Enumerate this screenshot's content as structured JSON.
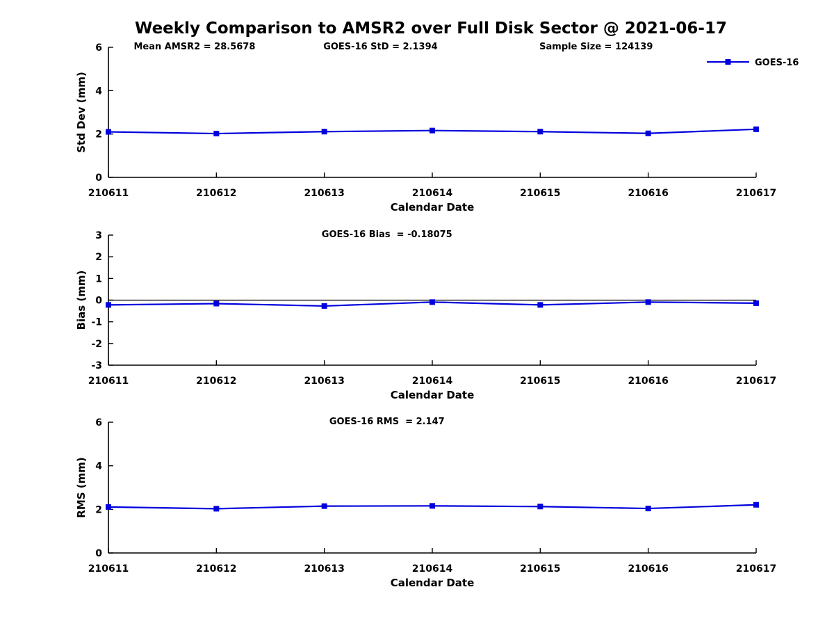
{
  "title": "Weekly Comparison to AMSR2 over Full Disk Sector @ 2021-06-17",
  "colors": {
    "line": "#0000dd",
    "axis": "#000000",
    "background": "#ffffff",
    "text": "#000000"
  },
  "legend": {
    "label": "GOES-16"
  },
  "x_axis": {
    "label": "Calendar Date",
    "categories": [
      "210611",
      "210612",
      "210613",
      "210614",
      "210615",
      "210616",
      "210617"
    ]
  },
  "chart_data": [
    {
      "type": "line",
      "name": "std-dev",
      "annotations": [
        "Mean AMSR2 = 28.5678",
        "GOES-16 StD = 2.1394",
        "Sample Size = 124139"
      ],
      "xlabel": "Calendar Date",
      "ylabel": "Std Dev (mm)",
      "ylim": [
        0,
        6
      ],
      "yticks": [
        0,
        2,
        4,
        6
      ],
      "categories": [
        "210611",
        "210612",
        "210613",
        "210614",
        "210615",
        "210616",
        "210617"
      ],
      "series": [
        {
          "name": "GOES-16",
          "values": [
            2.1,
            2.02,
            2.11,
            2.16,
            2.11,
            2.03,
            2.22
          ]
        }
      ],
      "legend": {
        "visible": true,
        "position": "top-right",
        "entries": [
          "GOES-16"
        ]
      },
      "zero_line": false,
      "grid": false
    },
    {
      "type": "line",
      "name": "bias",
      "annotations": [
        "GOES-16 Bias  = -0.18075"
      ],
      "xlabel": "Calendar Date",
      "ylabel": "Bias (mm)",
      "ylim": [
        -3,
        3
      ],
      "yticks": [
        -3,
        -2,
        -1,
        0,
        1,
        2,
        3
      ],
      "categories": [
        "210611",
        "210612",
        "210613",
        "210614",
        "210615",
        "210616",
        "210617"
      ],
      "series": [
        {
          "name": "GOES-16",
          "values": [
            -0.22,
            -0.16,
            -0.27,
            -0.09,
            -0.22,
            -0.09,
            -0.14
          ]
        }
      ],
      "legend": {
        "visible": false
      },
      "zero_line": true,
      "grid": false
    },
    {
      "type": "line",
      "name": "rms",
      "annotations": [
        "GOES-16 RMS  = 2.147"
      ],
      "xlabel": "Calendar Date",
      "ylabel": "RMS (mm)",
      "ylim": [
        0,
        6
      ],
      "yticks": [
        0,
        2,
        4,
        6
      ],
      "categories": [
        "210611",
        "210612",
        "210613",
        "210614",
        "210615",
        "210616",
        "210617"
      ],
      "series": [
        {
          "name": "GOES-16",
          "values": [
            2.11,
            2.03,
            2.15,
            2.16,
            2.13,
            2.04,
            2.21
          ]
        }
      ],
      "legend": {
        "visible": false
      },
      "zero_line": false,
      "grid": false
    }
  ]
}
